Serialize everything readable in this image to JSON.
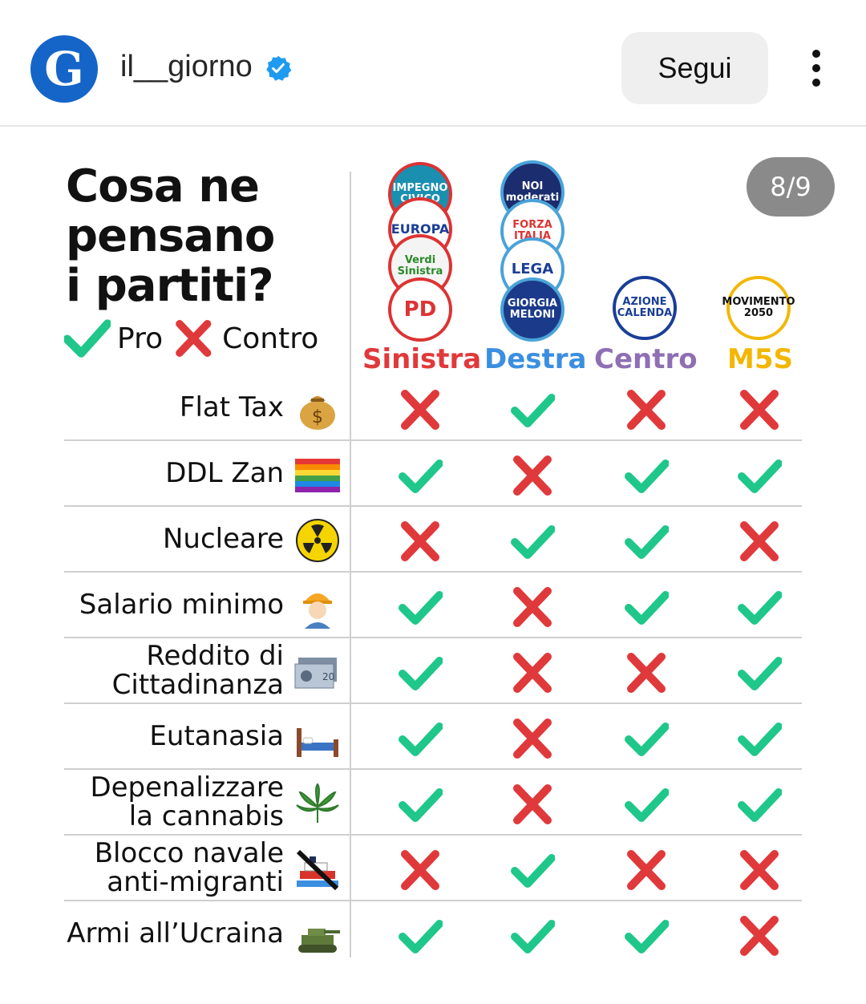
{
  "header": {
    "avatar_letter": "G",
    "username": "il__giorno",
    "follow_label": "Segui"
  },
  "post": {
    "counter": "8/9",
    "title_lines": [
      "Cosa ne",
      "pensano",
      "i partiti?"
    ],
    "legend": {
      "pro": "Pro",
      "contro": "Contro"
    },
    "colors": {
      "check": "#1fc78a",
      "cross": "#e0393b",
      "sinistra": "#e0393b",
      "destra": "#3b8fe0",
      "centro": "#8f6fb4",
      "m5s": "#f2b705"
    },
    "parties": [
      {
        "name": "Sinistra",
        "logos": [
          "IMPEGNO CIVICO",
          "EUROPA",
          "Verdi Sinistra",
          "PD"
        ]
      },
      {
        "name": "Destra",
        "logos": [
          "NOI moderati",
          "FORZA ITALIA",
          "LEGA",
          "GIORGIA MELONI"
        ]
      },
      {
        "name": "Centro",
        "logos": [
          "AZIONE CALENDA"
        ]
      },
      {
        "name": "M5S",
        "logos": [
          "MOVIMENTO 2050"
        ]
      }
    ],
    "topics": [
      {
        "label": [
          "Flat Tax"
        ],
        "icon": "money-bag-icon",
        "votes": [
          "contro",
          "pro",
          "contro",
          "contro"
        ]
      },
      {
        "label": [
          "DDL Zan"
        ],
        "icon": "rainbow-flag-icon",
        "votes": [
          "pro",
          "contro",
          "pro",
          "pro"
        ]
      },
      {
        "label": [
          "Nucleare"
        ],
        "icon": "radioactive-icon",
        "votes": [
          "contro",
          "pro",
          "pro",
          "contro"
        ]
      },
      {
        "label": [
          "Salario minimo"
        ],
        "icon": "worker-icon",
        "votes": [
          "pro",
          "contro",
          "pro",
          "pro"
        ]
      },
      {
        "label": [
          "Reddito di",
          "Cittadinanza"
        ],
        "icon": "euro-banknote-icon",
        "votes": [
          "pro",
          "contro",
          "contro",
          "pro"
        ]
      },
      {
        "label": [
          "Eutanasia"
        ],
        "icon": "bed-icon",
        "votes": [
          "pro",
          "contro",
          "pro",
          "pro"
        ]
      },
      {
        "label": [
          "Depenalizzare",
          "la cannabis"
        ],
        "icon": "cannabis-leaf-icon",
        "votes": [
          "pro",
          "contro",
          "pro",
          "pro"
        ]
      },
      {
        "label": [
          "Blocco navale",
          "anti-migranti"
        ],
        "icon": "no-ship-icon",
        "votes": [
          "contro",
          "pro",
          "contro",
          "contro"
        ]
      },
      {
        "label": [
          "Armi all’Ucraina"
        ],
        "icon": "tank-icon",
        "votes": [
          "pro",
          "pro",
          "pro",
          "contro"
        ]
      }
    ]
  }
}
